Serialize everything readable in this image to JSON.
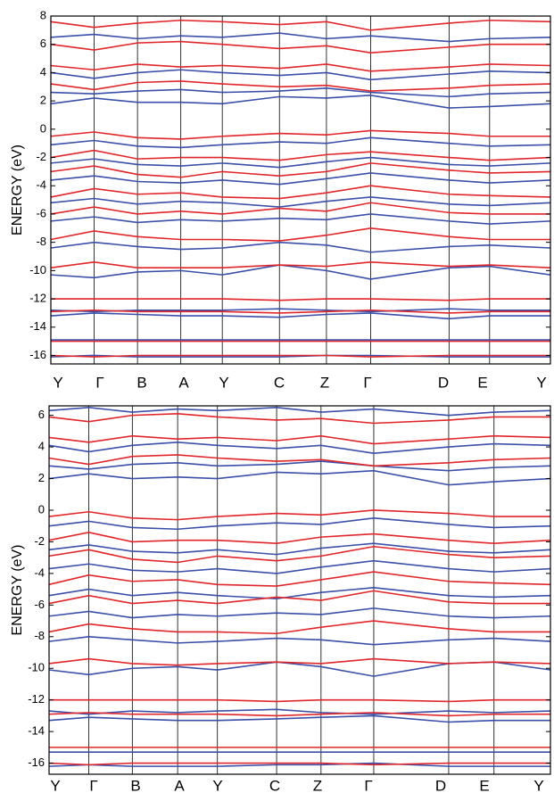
{
  "chart_data": [
    {
      "type": "line",
      "y_label": "ENERGY (eV)",
      "categories": [
        "Y",
        "Γ",
        "B",
        "A",
        "Y",
        "C",
        "Z",
        "Γ",
        "D",
        "E",
        "Y"
      ],
      "ylim": [
        -16.6,
        8
      ],
      "yticks": [
        8,
        6,
        4,
        2,
        0,
        -2,
        -4,
        -6,
        -8,
        -10,
        -12,
        -14,
        -16
      ],
      "series": [
        {
          "color": "#3a4fa8",
          "values": [
            -16.1,
            -16,
            -16.1,
            -16.1,
            -16.1,
            -16.1,
            -16,
            -16,
            -16.1,
            -16.1,
            -16.1
          ]
        },
        {
          "color": "#3a4fa8",
          "values": [
            -14.9,
            -14.9,
            -14.9,
            -14.9,
            -14.9,
            -14.9,
            -14.9,
            -14.9,
            -14.9,
            -14.9,
            -14.9
          ]
        },
        {
          "color": "#3a4fa8",
          "values": [
            -13.2,
            -13,
            -13.1,
            -13.2,
            -13.2,
            -13.3,
            -13.1,
            -13,
            -13.4,
            -13.2,
            -13.2
          ]
        },
        {
          "color": "#3a4fa8",
          "values": [
            -12.8,
            -12.9,
            -12.8,
            -12.8,
            -12.8,
            -12.7,
            -12.8,
            -12.9,
            -12.7,
            -12.8,
            -12.8
          ]
        },
        {
          "color": "#3a4fa8",
          "values": [
            -10.3,
            -10.5,
            -10.1,
            -10,
            -10.3,
            -9.6,
            -10,
            -10.6,
            -9.8,
            -9.7,
            -10.3
          ]
        },
        {
          "color": "#3a4fa8",
          "values": [
            -8.4,
            -8,
            -8.3,
            -8.5,
            -8.4,
            -8,
            -8.2,
            -8.7,
            -8.3,
            -8.2,
            -8.4
          ]
        },
        {
          "color": "#3a4fa8",
          "values": [
            -6.5,
            -6.2,
            -6.6,
            -6.4,
            -6.5,
            -6.3,
            -6.4,
            -6,
            -6.5,
            -6.7,
            -6.5
          ]
        },
        {
          "color": "#3a4fa8",
          "values": [
            -5.2,
            -4.9,
            -5.3,
            -5.1,
            -5.2,
            -5.5,
            -5.1,
            -4.8,
            -5.3,
            -5.4,
            -5.2
          ]
        },
        {
          "color": "#3a4fa8",
          "values": [
            -3.6,
            -3.3,
            -3.7,
            -3.8,
            -3.6,
            -3.9,
            -3.5,
            -3.1,
            -3.6,
            -3.8,
            -3.6
          ]
        },
        {
          "color": "#3a4fa8",
          "values": [
            -2.4,
            -2.1,
            -2.5,
            -2.6,
            -2.4,
            -2.7,
            -2.3,
            -2,
            -2.5,
            -2.6,
            -2.4
          ]
        },
        {
          "color": "#3a4fa8",
          "values": [
            -1.1,
            -0.8,
            -1.2,
            -1.3,
            -1.1,
            -0.9,
            -1,
            -0.6,
            -1,
            -1.2,
            -1.1
          ]
        },
        {
          "color": "#3a4fa8",
          "values": [
            1.8,
            2.2,
            1.9,
            1.9,
            1.8,
            2.3,
            2.2,
            2.4,
            1.5,
            1.6,
            1.8
          ]
        },
        {
          "color": "#3a4fa8",
          "values": [
            2.6,
            2.5,
            2.7,
            2.8,
            2.6,
            2.7,
            2.9,
            2.6,
            2.3,
            2.5,
            2.6
          ]
        },
        {
          "color": "#3a4fa8",
          "values": [
            4,
            3.6,
            4,
            4.2,
            4,
            3.8,
            4,
            3.5,
            3.9,
            4.1,
            4
          ]
        },
        {
          "color": "#3a4fa8",
          "values": [
            6.5,
            6.7,
            6.4,
            6.6,
            6.5,
            6.8,
            6.4,
            6.6,
            6.2,
            6.4,
            6.5
          ]
        },
        {
          "color": "#e0262a",
          "values": [
            -16,
            -16.1,
            -16,
            -16,
            -16,
            -16,
            -16,
            -16.1,
            -16,
            -16,
            -16
          ]
        },
        {
          "color": "#e0262a",
          "values": [
            -15,
            -15,
            -15,
            -15,
            -15,
            -15,
            -15,
            -15,
            -15,
            -15,
            -15
          ]
        },
        {
          "color": "#e0262a",
          "values": [
            -12.9,
            -12.8,
            -12.9,
            -12.9,
            -12.9,
            -13,
            -12.9,
            -12.8,
            -13,
            -12.9,
            -12.9
          ]
        },
        {
          "color": "#e0262a",
          "values": [
            -12,
            -12,
            -12,
            -12,
            -12,
            -12.1,
            -12,
            -12,
            -12.1,
            -12,
            -12
          ]
        },
        {
          "color": "#e0262a",
          "values": [
            -9.8,
            -9.4,
            -9.8,
            -9.8,
            -9.8,
            -9.6,
            -9.7,
            -9.4,
            -9.7,
            -9.6,
            -9.8
          ]
        },
        {
          "color": "#e0262a",
          "values": [
            -7.8,
            -7.2,
            -7.6,
            -7.8,
            -7.8,
            -7.9,
            -7.5,
            -7,
            -7.6,
            -7.8,
            -7.8
          ]
        },
        {
          "color": "#e0262a",
          "values": [
            -6,
            -5.5,
            -6,
            -5.8,
            -6,
            -5.6,
            -5.8,
            -5.2,
            -5.9,
            -6,
            -6
          ]
        },
        {
          "color": "#e0262a",
          "values": [
            -4.8,
            -4.2,
            -4.6,
            -4.5,
            -4.8,
            -4.9,
            -4.5,
            -4,
            -4.6,
            -4.7,
            -4.8
          ]
        },
        {
          "color": "#e0262a",
          "values": [
            -3,
            -2.6,
            -3.2,
            -3.4,
            -3,
            -3.3,
            -3,
            -2.4,
            -2.9,
            -3.1,
            -3
          ]
        },
        {
          "color": "#e0262a",
          "values": [
            -2,
            -1.5,
            -2.1,
            -2,
            -2,
            -2.2,
            -1.8,
            -1.6,
            -2,
            -2.2,
            -2
          ]
        },
        {
          "color": "#e0262a",
          "values": [
            -0.5,
            -0.2,
            -0.6,
            -0.7,
            -0.5,
            -0.3,
            -0.4,
            -0.1,
            -0.3,
            -0.5,
            -0.5
          ]
        },
        {
          "color": "#e0262a",
          "values": [
            3.2,
            2.8,
            3.3,
            3.4,
            3.2,
            3,
            3.1,
            2.7,
            2.9,
            3.1,
            3.2
          ]
        },
        {
          "color": "#e0262a",
          "values": [
            4.5,
            4.2,
            4.6,
            4.4,
            4.5,
            4.3,
            4.6,
            4.1,
            4.4,
            4.6,
            4.5
          ]
        },
        {
          "color": "#e0262a",
          "values": [
            6,
            5.6,
            6.1,
            6.2,
            6,
            5.7,
            5.9,
            5.4,
            5.8,
            6,
            6
          ]
        },
        {
          "color": "#e0262a",
          "values": [
            7.6,
            7.2,
            7.5,
            7.7,
            7.6,
            7.4,
            7.6,
            7,
            7.5,
            7.7,
            7.6
          ]
        }
      ]
    },
    {
      "type": "line",
      "y_label": "ENERGY (eV)",
      "categories": [
        "Y",
        "Γ",
        "B",
        "A",
        "Y",
        "C",
        "Z",
        "Γ",
        "D",
        "E",
        "Y"
      ],
      "ylim": [
        -16.7,
        6.6
      ],
      "yticks": [
        6,
        4,
        2,
        0,
        -2,
        -4,
        -6,
        -8,
        -10,
        -12,
        -14,
        -16
      ],
      "series": [
        {
          "color": "#3a4fa8",
          "values": [
            -16.2,
            -16.1,
            -16.2,
            -16.2,
            -16.2,
            -16.1,
            -16.1,
            -16,
            -16.2,
            -16.2,
            -16.2
          ]
        },
        {
          "color": "#3a4fa8",
          "values": [
            -15.3,
            -15.3,
            -15.3,
            -15.3,
            -15.3,
            -15.3,
            -15.3,
            -15.3,
            -15.3,
            -15.3,
            -15.3
          ]
        },
        {
          "color": "#3a4fa8",
          "values": [
            -13.3,
            -13.1,
            -13.2,
            -13.3,
            -13.3,
            -13.2,
            -13.1,
            -13,
            -13.4,
            -13.3,
            -13.3
          ]
        },
        {
          "color": "#3a4fa8",
          "values": [
            -12.7,
            -12.9,
            -12.7,
            -12.8,
            -12.7,
            -12.6,
            -12.8,
            -12.9,
            -12.7,
            -12.8,
            -12.7
          ]
        },
        {
          "color": "#3a4fa8",
          "values": [
            -10.1,
            -10.4,
            -10,
            -9.9,
            -10.1,
            -9.6,
            -9.9,
            -10.5,
            -9.7,
            -9.6,
            -10.1
          ]
        },
        {
          "color": "#3a4fa8",
          "values": [
            -8.3,
            -8,
            -8.2,
            -8.4,
            -8.3,
            -8.1,
            -8.2,
            -8.5,
            -8.2,
            -8.1,
            -8.3
          ]
        },
        {
          "color": "#3a4fa8",
          "values": [
            -6.7,
            -6.4,
            -6.8,
            -6.6,
            -6.7,
            -6.5,
            -6.6,
            -6.2,
            -6.7,
            -6.8,
            -6.7
          ]
        },
        {
          "color": "#3a4fa8",
          "values": [
            -5.4,
            -5,
            -5.4,
            -5.2,
            -5.4,
            -5.6,
            -5.2,
            -4.9,
            -5.4,
            -5.5,
            -5.4
          ]
        },
        {
          "color": "#3a4fa8",
          "values": [
            -3.7,
            -3.4,
            -3.8,
            -3.9,
            -3.7,
            -4,
            -3.6,
            -3.2,
            -3.7,
            -3.9,
            -3.7
          ]
        },
        {
          "color": "#3a4fa8",
          "values": [
            -2.5,
            -2.2,
            -2.6,
            -2.7,
            -2.5,
            -2.8,
            -2.4,
            -2.1,
            -2.6,
            -2.7,
            -2.5
          ]
        },
        {
          "color": "#3a4fa8",
          "values": [
            -1,
            -0.7,
            -1.1,
            -1.2,
            -1,
            -0.8,
            -0.9,
            -0.5,
            -0.9,
            -1.1,
            -1
          ]
        },
        {
          "color": "#3a4fa8",
          "values": [
            2,
            2.3,
            2,
            2.1,
            2,
            2.4,
            2.3,
            2.5,
            1.6,
            1.8,
            2
          ]
        },
        {
          "color": "#3a4fa8",
          "values": [
            2.8,
            2.6,
            2.9,
            3,
            2.8,
            2.9,
            3.1,
            2.8,
            2.5,
            2.7,
            2.8
          ]
        },
        {
          "color": "#3a4fa8",
          "values": [
            4.1,
            3.7,
            4.1,
            4.3,
            4.1,
            3.9,
            4.1,
            3.6,
            4,
            4.2,
            4.1
          ]
        },
        {
          "color": "#3a4fa8",
          "values": [
            6.3,
            6.5,
            6.2,
            6.4,
            6.3,
            6.5,
            6.2,
            6.4,
            6,
            6.2,
            6.3
          ]
        },
        {
          "color": "#e0262a",
          "values": [
            -16,
            -16.1,
            -16,
            -16,
            -16,
            -16,
            -16,
            -16.1,
            -16,
            -16,
            -16
          ]
        },
        {
          "color": "#e0262a",
          "values": [
            -15,
            -15,
            -15,
            -15,
            -15,
            -15,
            -15,
            -15,
            -15,
            -15,
            -15
          ]
        },
        {
          "color": "#e0262a",
          "values": [
            -12.9,
            -12.8,
            -12.9,
            -12.9,
            -12.9,
            -13,
            -12.9,
            -12.8,
            -13,
            -12.9,
            -12.9
          ]
        },
        {
          "color": "#e0262a",
          "values": [
            -12,
            -12,
            -12,
            -12,
            -12,
            -12.1,
            -12,
            -12,
            -12.1,
            -12,
            -12
          ]
        },
        {
          "color": "#e0262a",
          "values": [
            -9.7,
            -9.4,
            -9.7,
            -9.8,
            -9.7,
            -9.6,
            -9.7,
            -9.4,
            -9.7,
            -9.6,
            -9.7
          ]
        },
        {
          "color": "#e0262a",
          "values": [
            -7.7,
            -7.2,
            -7.5,
            -7.7,
            -7.7,
            -7.8,
            -7.4,
            -7,
            -7.5,
            -7.7,
            -7.7
          ]
        },
        {
          "color": "#e0262a",
          "values": [
            -5.9,
            -5.4,
            -5.9,
            -5.7,
            -5.9,
            -5.5,
            -5.7,
            -5.1,
            -5.8,
            -5.9,
            -5.9
          ]
        },
        {
          "color": "#e0262a",
          "values": [
            -4.7,
            -4.1,
            -4.5,
            -4.4,
            -4.7,
            -4.8,
            -4.4,
            -3.9,
            -4.5,
            -4.6,
            -4.7
          ]
        },
        {
          "color": "#e0262a",
          "values": [
            -2.9,
            -2.5,
            -3.1,
            -3.3,
            -2.9,
            -3.2,
            -2.9,
            -2.3,
            -2.8,
            -3,
            -2.9
          ]
        },
        {
          "color": "#e0262a",
          "values": [
            -1.9,
            -1.4,
            -2,
            -1.9,
            -1.9,
            -2.1,
            -1.7,
            -1.5,
            -1.9,
            -2.1,
            -1.9
          ]
        },
        {
          "color": "#e0262a",
          "values": [
            -0.4,
            -0.1,
            -0.5,
            -0.6,
            -0.4,
            -0.2,
            -0.3,
            0,
            -0.2,
            -0.4,
            -0.4
          ]
        },
        {
          "color": "#e0262a",
          "values": [
            3.3,
            2.9,
            3.4,
            3.5,
            3.3,
            3.1,
            3.2,
            2.8,
            3,
            3.2,
            3.3
          ]
        },
        {
          "color": "#e0262a",
          "values": [
            4.6,
            4.3,
            4.7,
            4.5,
            4.6,
            4.4,
            4.7,
            4.2,
            4.5,
            4.7,
            4.6
          ]
        },
        {
          "color": "#e0262a",
          "values": [
            5.9,
            5.6,
            6,
            6.1,
            5.9,
            5.7,
            5.8,
            5.5,
            5.7,
            5.9,
            5.9
          ]
        }
      ]
    }
  ]
}
